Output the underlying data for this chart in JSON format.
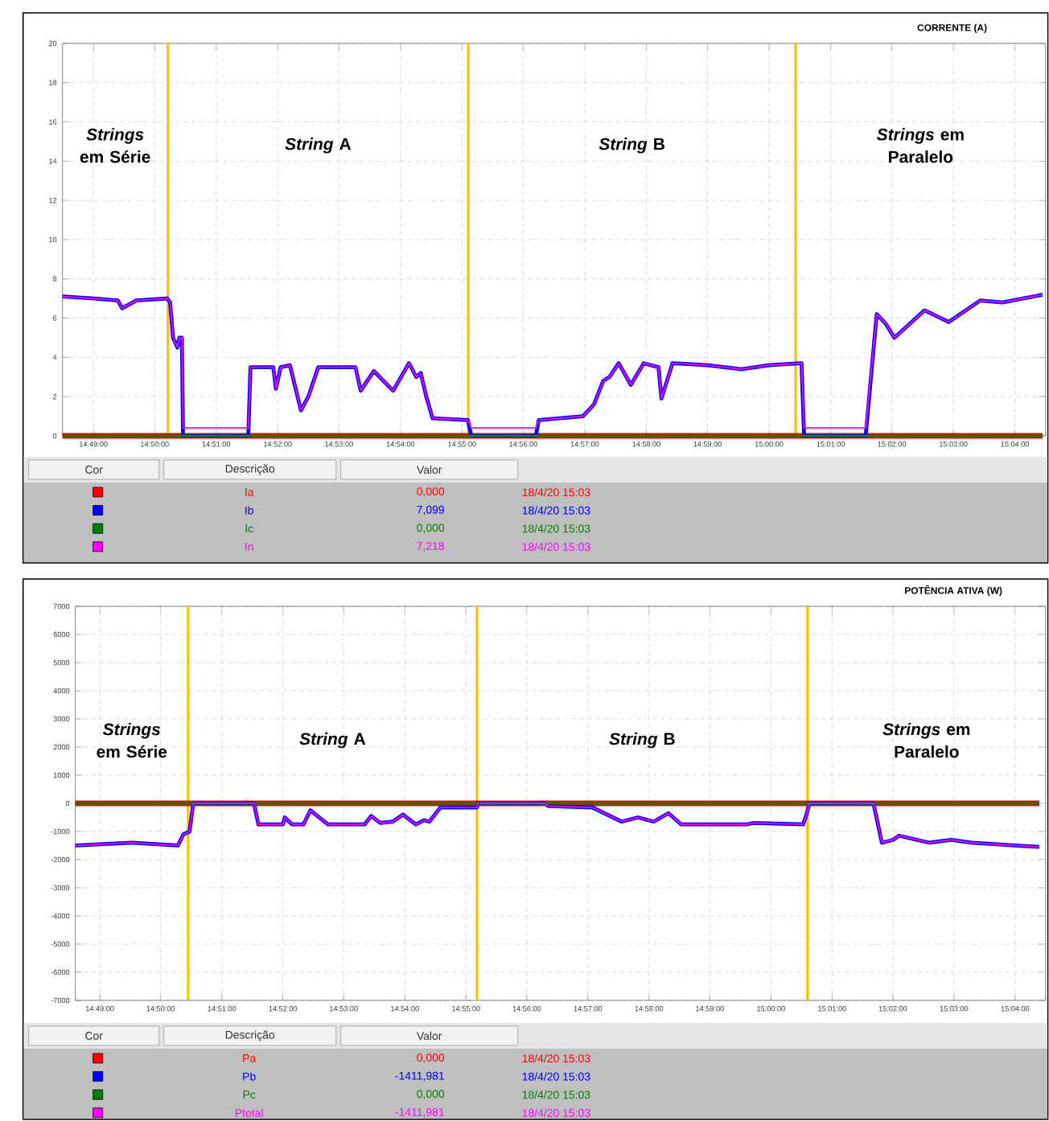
{
  "chart_data": [
    {
      "type": "line",
      "title": "CORRENTE (A)",
      "grid": true,
      "legend": "bottom",
      "xlim": [
        14.8083,
        15.075
      ],
      "ylim": [
        0,
        20
      ],
      "xticks": [
        {
          "value": 14.8167,
          "label": "14:49:00"
        },
        {
          "value": 14.8333,
          "label": "14:50:00"
        },
        {
          "value": 14.85,
          "label": "14:51:00"
        },
        {
          "value": 14.8667,
          "label": "14:52:00"
        },
        {
          "value": 14.8833,
          "label": "14:53:00"
        },
        {
          "value": 14.9,
          "label": "14:54:00"
        },
        {
          "value": 14.9167,
          "label": "14:55:00"
        },
        {
          "value": 14.9333,
          "label": "14:56:00"
        },
        {
          "value": 14.95,
          "label": "14:57:00"
        },
        {
          "value": 14.9667,
          "label": "14:58:00"
        },
        {
          "value": 14.9833,
          "label": "14:59:00"
        },
        {
          "value": 15.0,
          "label": "15:00:00"
        },
        {
          "value": 15.0167,
          "label": "15:01:00"
        },
        {
          "value": 15.0333,
          "label": "15:02:00"
        },
        {
          "value": 15.05,
          "label": "15:03:00"
        },
        {
          "value": 15.0667,
          "label": "15:04:00"
        }
      ],
      "yticks": [
        0,
        2,
        4,
        6,
        8,
        10,
        12,
        14,
        16,
        18,
        20
      ],
      "ref_lines": [
        {
          "axis": "x",
          "value": 14.8369,
          "color": "#ffc000"
        },
        {
          "axis": "x",
          "value": 14.9184,
          "color": "#ffc000"
        },
        {
          "axis": "x",
          "value": 15.0072,
          "color": "#ffc000"
        }
      ],
      "x": [
        14.8083,
        14.8167,
        14.8233,
        14.8245,
        14.8283,
        14.8367,
        14.8375,
        14.8383,
        14.8395,
        14.84,
        14.8407,
        14.841,
        14.8587,
        14.8593,
        14.8655,
        14.8662,
        14.8675,
        14.87,
        14.873,
        14.875,
        14.8777,
        14.8878,
        14.8892,
        14.8928,
        14.898,
        14.9023,
        14.9043,
        14.9055,
        14.907,
        14.9087,
        14.9183,
        14.9192,
        14.9367,
        14.9375,
        14.9495,
        14.9525,
        14.955,
        14.9567,
        14.9592,
        14.9625,
        14.966,
        14.97,
        14.9708,
        14.9738,
        14.9833,
        14.9925,
        15.0,
        15.0088,
        15.0095,
        15.0262,
        15.0292,
        15.0317,
        15.034,
        15.0422,
        15.0487,
        15.0573,
        15.0633,
        15.0717,
        15.0742
      ],
      "series": [
        {
          "name": "Ia",
          "color": "#ff0000",
          "x": [
            14.8083,
            15.0742
          ],
          "values": [
            0,
            0
          ]
        },
        {
          "name": "Ib",
          "color": "#0000ff",
          "values": [
            7.1,
            7.0,
            6.9,
            6.5,
            6.9,
            7.0,
            6.8,
            5.0,
            4.5,
            5.0,
            5.0,
            0,
            0,
            3.5,
            3.5,
            2.4,
            3.5,
            3.6,
            1.3,
            2.0,
            3.5,
            3.5,
            2.3,
            3.3,
            2.3,
            3.7,
            3.0,
            3.2,
            2.0,
            0.9,
            0.8,
            0,
            0,
            0.8,
            1.0,
            1.6,
            2.8,
            3.0,
            3.7,
            2.6,
            3.7,
            3.5,
            1.9,
            3.7,
            3.6,
            3.4,
            3.6,
            3.7,
            0,
            0,
            6.2,
            5.7,
            5.0,
            6.4,
            5.8,
            6.9,
            6.8,
            7.1,
            7.2
          ]
        },
        {
          "name": "Ic",
          "color": "#008000",
          "x": [
            14.8083,
            15.0742
          ],
          "values": [
            0,
            0
          ]
        },
        {
          "name": "In",
          "color": "#ff00ff",
          "values": [
            7.1,
            7.0,
            6.9,
            6.5,
            6.9,
            7.0,
            6.8,
            5.0,
            4.5,
            5.0,
            5.0,
            0.4,
            0.4,
            3.5,
            3.5,
            2.4,
            3.5,
            3.6,
            1.3,
            2.0,
            3.5,
            3.5,
            2.3,
            3.3,
            2.3,
            3.7,
            3.0,
            3.2,
            2.0,
            0.9,
            0.8,
            0.4,
            0.4,
            0.8,
            1.0,
            1.6,
            2.8,
            3.0,
            3.7,
            2.6,
            3.7,
            3.5,
            1.9,
            3.7,
            3.6,
            3.4,
            3.6,
            3.7,
            0.4,
            0.4,
            6.2,
            5.7,
            5.0,
            6.4,
            5.8,
            6.9,
            6.8,
            7.1,
            7.2
          ]
        }
      ],
      "annotations": [
        "*Strings* em Série",
        "*String* A",
        "*String* B",
        "*Strings* em Paralelo",
        "Cor",
        "Descrição",
        "Valor",
        "0,000",
        "18/4/20 15:03",
        "7,099",
        "18/4/20 15:03",
        "0,000",
        "18/4/20 15:03",
        "7,218",
        "18/4/20 15:03"
      ]
    },
    {
      "type": "line",
      "title": "POTÊNCIA ATIVA (W)",
      "grid": true,
      "legend": "bottom",
      "xlim": [
        14.81,
        15.075
      ],
      "ylim": [
        -7000,
        7000
      ],
      "xticks": [
        {
          "value": 14.8167,
          "label": "14:49:00"
        },
        {
          "value": 14.8333,
          "label": "14:50:00"
        },
        {
          "value": 14.85,
          "label": "14:51:00"
        },
        {
          "value": 14.8667,
          "label": "14:52:00"
        },
        {
          "value": 14.8833,
          "label": "14:53:00"
        },
        {
          "value": 14.9,
          "label": "14:54:00"
        },
        {
          "value": 14.9167,
          "label": "14:55:00"
        },
        {
          "value": 14.9333,
          "label": "14:56:00"
        },
        {
          "value": 14.95,
          "label": "14:57:00"
        },
        {
          "value": 14.9667,
          "label": "14:58:00"
        },
        {
          "value": 14.9833,
          "label": "14:59:00"
        },
        {
          "value": 15.0,
          "label": "15:00:00"
        },
        {
          "value": 15.0167,
          "label": "15:01:00"
        },
        {
          "value": 15.0333,
          "label": "15:02:00"
        },
        {
          "value": 15.05,
          "label": "15:03:00"
        },
        {
          "value": 15.0667,
          "label": "15:04:00"
        }
      ],
      "yticks": [
        -7000,
        -6000,
        -5000,
        -4000,
        -3000,
        -2000,
        -1000,
        0,
        1000,
        2000,
        3000,
        4000,
        5000,
        6000,
        7000
      ],
      "ref_lines": [
        {
          "axis": "x",
          "value": 14.8408,
          "color": "#ffc000"
        },
        {
          "axis": "x",
          "value": 14.9197,
          "color": "#ffc000"
        },
        {
          "axis": "x",
          "value": 15.01,
          "color": "#ffc000"
        }
      ],
      "x": [
        14.81,
        14.8255,
        14.838,
        14.8395,
        14.8412,
        14.8422,
        14.8588,
        14.86,
        14.8667,
        14.8672,
        14.8692,
        14.8723,
        14.8742,
        14.879,
        14.889,
        14.8908,
        14.8933,
        14.8967,
        14.8995,
        14.903,
        14.9053,
        14.9067,
        14.9097,
        14.9197,
        14.92,
        14.9382,
        14.9392,
        14.9513,
        14.9592,
        14.9637,
        14.968,
        14.972,
        14.9755,
        14.9933,
        14.995,
        15.0088,
        15.0097,
        15.0105,
        15.028,
        15.0303,
        15.0333,
        15.035,
        15.0433,
        15.0492,
        15.0548,
        15.0667,
        15.0733
      ],
      "series": [
        {
          "name": "Pa",
          "color": "#ff0000",
          "x": [
            14.81,
            15.0733
          ],
          "values": [
            0,
            0
          ]
        },
        {
          "name": "Pb",
          "color": "#0000ff",
          "values": [
            -1500,
            -1400,
            -1500,
            -1100,
            -1000,
            0,
            0,
            -750,
            -750,
            -500,
            -750,
            -750,
            -250,
            -750,
            -750,
            -450,
            -700,
            -650,
            -400,
            -750,
            -600,
            -650,
            -150,
            -150,
            0,
            0,
            -100,
            -150,
            -650,
            -500,
            -650,
            -350,
            -750,
            -750,
            -700,
            -750,
            -400,
            0,
            0,
            -1400,
            -1300,
            -1150,
            -1400,
            -1300,
            -1400,
            -1500,
            -1550
          ]
        },
        {
          "name": "Pc",
          "color": "#008000",
          "x": [
            14.81,
            15.0733
          ],
          "values": [
            0,
            0
          ]
        },
        {
          "name": "Ptotal",
          "color": "#ff00ff",
          "values": [
            -1500,
            -1400,
            -1500,
            -1100,
            -1000,
            0,
            0,
            -750,
            -750,
            -500,
            -750,
            -750,
            -250,
            -750,
            -750,
            -450,
            -700,
            -650,
            -400,
            -750,
            -600,
            -650,
            -150,
            -150,
            0,
            0,
            -100,
            -150,
            -650,
            -500,
            -650,
            -350,
            -750,
            -750,
            -700,
            -750,
            -400,
            0,
            0,
            -1400,
            -1300,
            -1150,
            -1400,
            -1300,
            -1400,
            -1500,
            -1550
          ]
        }
      ],
      "annotations": [
        "*Strings* em Série",
        "*String* A",
        "*String* B",
        "*Strings* em Paralelo",
        "Cor",
        "Descrição",
        "Valor",
        "0,000",
        "18/4/20 15:03",
        "-1411,981",
        "18/4/20 15:03",
        "0,000",
        "18/4/20 15:03",
        "-1411,981",
        "18/4/20 15:03"
      ]
    }
  ]
}
